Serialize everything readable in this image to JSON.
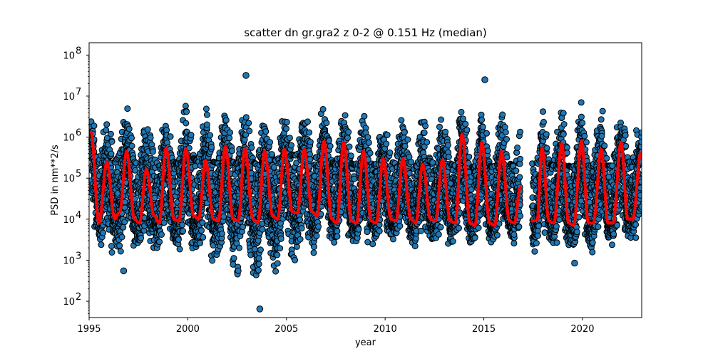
{
  "chart_data": {
    "type": "scatter",
    "title": "scatter dn gr.gra2 z 0-2 @ 0.151 Hz (median)",
    "xlabel": "year",
    "ylabel": "PSD in nm**2/s",
    "xlim": [
      1995,
      2023
    ],
    "ylim": [
      40,
      200000000
    ],
    "yscale": "log",
    "x_ticks": [
      1995,
      2000,
      2005,
      2010,
      2015,
      2020
    ],
    "x_tick_labels": [
      "1995",
      "2000",
      "2005",
      "2010",
      "2015",
      "2020"
    ],
    "y_ticks": [
      100,
      1000,
      10000,
      100000,
      1000000,
      10000000,
      100000000
    ],
    "y_tick_labels": [
      {
        "base": "10",
        "exp": "2"
      },
      {
        "base": "10",
        "exp": "3"
      },
      {
        "base": "10",
        "exp": "4"
      },
      {
        "base": "10",
        "exp": "5"
      },
      {
        "base": "10",
        "exp": "6"
      },
      {
        "base": "10",
        "exp": "7"
      },
      {
        "base": "10",
        "exp": "8"
      }
    ],
    "grid": false,
    "data_gap": [
      2016.85,
      2017.45
    ],
    "series": [
      {
        "kind": "scatter",
        "color": "#1f77b4",
        "edgecolor": "#000000",
        "description": "daily PSD samples, seasonal cycle with winter maxima",
        "seasonal_envelope": {
          "upper": [
            [
              1995.1,
              4000000
            ],
            [
              1996.9,
              11000000
            ],
            [
              1998.9,
              6000000
            ],
            [
              1999.9,
              15000000
            ],
            [
              2001.9,
              13000000
            ],
            [
              2002.95,
              32000000
            ],
            [
              2003.9,
              8000000
            ],
            [
              2006.9,
              12000000
            ],
            [
              2007.2,
              15000000
            ],
            [
              2013.9,
              9000000
            ],
            [
              2015.05,
              25000000
            ],
            [
              2017.95,
              10000000
            ],
            [
              2020.95,
              10000000
            ],
            [
              2022.95,
              3000000
            ]
          ],
          "lower": [
            [
              1995.5,
              1000
            ],
            [
              1996.75,
              550
            ],
            [
              1997.7,
              1300
            ],
            [
              2000.6,
              800
            ],
            [
              2003.65,
              65
            ],
            [
              2007.5,
              2500
            ],
            [
              2011.6,
              1500
            ],
            [
              2016.6,
              2000
            ],
            [
              2019.6,
              850
            ],
            [
              2022.6,
              2500
            ]
          ]
        },
        "outliers": [
          [
            2002.95,
            32000000
          ],
          [
            2003.65,
            65
          ],
          [
            2015.05,
            25000000
          ],
          [
            1996.75,
            550
          ],
          [
            2019.6,
            850
          ]
        ]
      },
      {
        "kind": "line",
        "color": "#ff0000",
        "description": "running median",
        "x": [
          1995.1,
          1995.5,
          1995.9,
          1996.3,
          1996.55,
          1996.9,
          1997.3,
          1997.55,
          1997.9,
          1998.3,
          1998.55,
          1998.9,
          1999.3,
          1999.55,
          1999.9,
          2000.3,
          2000.55,
          2000.9,
          2001.3,
          2001.55,
          2001.9,
          2002.3,
          2002.55,
          2002.9,
          2003.3,
          2003.55,
          2003.9,
          2004.3,
          2004.55,
          2004.9,
          2005.3,
          2005.55,
          2005.9,
          2006.3,
          2006.55,
          2006.9,
          2007.3,
          2007.55,
          2007.9,
          2008.3,
          2008.55,
          2008.9,
          2009.3,
          2009.55,
          2009.9,
          2010.3,
          2010.55,
          2010.9,
          2011.3,
          2011.55,
          2011.9,
          2012.3,
          2012.55,
          2012.9,
          2013.3,
          2013.55,
          2013.9,
          2014.3,
          2014.55,
          2014.9,
          2015.3,
          2015.55,
          2015.9,
          2016.3,
          2016.55,
          2016.85,
          2017.45,
          2017.7,
          2017.95,
          2018.3,
          2018.55,
          2018.95,
          2019.3,
          2019.55,
          2019.95,
          2020.3,
          2020.55,
          2020.95,
          2021.3,
          2021.55,
          2021.95,
          2022.3,
          2022.55,
          2022.95
        ],
        "y": [
          1300000,
          8000,
          250000,
          10000,
          15000,
          450000,
          10000,
          8000,
          160000,
          12000,
          8000,
          550000,
          10000,
          9000,
          520000,
          12000,
          10000,
          270000,
          10000,
          9000,
          600000,
          10000,
          9000,
          520000,
          10000,
          8000,
          450000,
          12000,
          10000,
          500000,
          15000,
          14000,
          500000,
          15000,
          12000,
          800000,
          10000,
          8000,
          750000,
          9000,
          8000,
          450000,
          9000,
          8000,
          300000,
          10000,
          9000,
          300000,
          10000,
          8000,
          220000,
          10000,
          9000,
          280000,
          9000,
          8000,
          1200000,
          8000,
          7000,
          750000,
          8000,
          7000,
          450000,
          9000,
          8000,
          60000,
          9000,
          9500,
          550000,
          9000,
          8000,
          700000,
          8000,
          7000,
          800000,
          8000,
          8000,
          500000,
          8000,
          8000,
          750000,
          10000,
          10000,
          400000
        ]
      }
    ]
  }
}
